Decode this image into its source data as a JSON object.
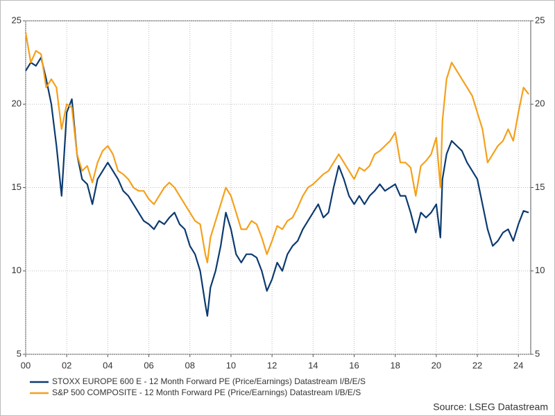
{
  "chart_data": {
    "type": "line",
    "x": [
      2000,
      2000.25,
      2000.5,
      2000.75,
      2001,
      2001.25,
      2001.5,
      2001.75,
      2002,
      2002.25,
      2002.5,
      2002.75,
      2003,
      2003.25,
      2003.5,
      2003.75,
      2004,
      2004.25,
      2004.5,
      2004.75,
      2005,
      2005.25,
      2005.5,
      2005.75,
      2006,
      2006.25,
      2006.5,
      2006.75,
      2007,
      2007.25,
      2007.5,
      2007.75,
      2008,
      2008.25,
      2008.5,
      2008.75,
      2008.85,
      2009,
      2009.25,
      2009.5,
      2009.75,
      2010,
      2010.25,
      2010.5,
      2010.75,
      2011,
      2011.25,
      2011.5,
      2011.75,
      2012,
      2012.25,
      2012.5,
      2012.75,
      2013,
      2013.25,
      2013.5,
      2013.75,
      2014,
      2014.25,
      2014.5,
      2014.75,
      2015,
      2015.25,
      2015.5,
      2015.75,
      2016,
      2016.25,
      2016.5,
      2016.75,
      2017,
      2017.25,
      2017.5,
      2017.75,
      2018,
      2018.25,
      2018.5,
      2018.75,
      2019,
      2019.25,
      2019.5,
      2019.75,
      2020,
      2020.2,
      2020.3,
      2020.5,
      2020.75,
      2021,
      2021.25,
      2021.5,
      2021.75,
      2022,
      2022.25,
      2022.5,
      2022.75,
      2023,
      2023.25,
      2023.5,
      2023.75,
      2024,
      2024.25,
      2024.5
    ],
    "series": [
      {
        "name": "STOXX EUROPE 600 E - 12 Month Forward PE (Price/Earnings) Datastream I/B/E/S",
        "color": "#0b3a70",
        "values": [
          22.0,
          22.5,
          22.3,
          22.8,
          21.5,
          20.0,
          17.5,
          14.5,
          19.5,
          20.3,
          17.0,
          15.5,
          15.2,
          14.0,
          15.5,
          16.0,
          16.5,
          16.0,
          15.5,
          14.8,
          14.5,
          14.0,
          13.5,
          13.0,
          12.8,
          12.5,
          13.0,
          12.8,
          13.2,
          13.5,
          12.8,
          12.5,
          11.5,
          11.0,
          10.0,
          8.0,
          7.3,
          9.0,
          10.0,
          11.5,
          13.5,
          12.5,
          11.0,
          10.5,
          11.0,
          11.0,
          10.8,
          10.0,
          8.8,
          9.5,
          10.5,
          10.0,
          11.0,
          11.5,
          11.8,
          12.5,
          13.0,
          13.5,
          14.0,
          13.2,
          13.5,
          15.0,
          16.3,
          15.5,
          14.5,
          14.0,
          14.5,
          14.0,
          14.5,
          14.8,
          15.2,
          14.8,
          15.0,
          15.2,
          14.5,
          14.5,
          13.5,
          12.3,
          13.5,
          13.2,
          13.5,
          14.0,
          12.0,
          15.5,
          17.0,
          17.8,
          17.5,
          17.2,
          16.5,
          16.0,
          15.5,
          14.0,
          12.5,
          11.5,
          11.8,
          12.3,
          12.5,
          11.8,
          12.8,
          13.6,
          13.5
        ]
      },
      {
        "name": "S&P 500 COMPOSITE - 12 Month Forward PE (Price/Earnings) Datastream I/B/E/S",
        "color": "#f5a01a",
        "values": [
          24.3,
          22.5,
          23.2,
          23.0,
          21.0,
          21.5,
          21.0,
          18.5,
          20.0,
          19.8,
          17.0,
          16.0,
          16.3,
          15.3,
          16.5,
          17.2,
          17.5,
          17.0,
          16.0,
          15.8,
          15.5,
          15.0,
          14.8,
          14.8,
          14.3,
          14.0,
          14.5,
          15.0,
          15.3,
          15.0,
          14.5,
          14.0,
          13.5,
          13.0,
          12.8,
          11.0,
          10.5,
          12.0,
          13.0,
          14.0,
          15.0,
          14.5,
          13.5,
          12.5,
          12.5,
          13.0,
          12.8,
          12.0,
          11.0,
          11.8,
          12.7,
          12.5,
          13.0,
          13.2,
          13.8,
          14.5,
          15.0,
          15.2,
          15.5,
          15.8,
          16.0,
          16.5,
          17.0,
          16.5,
          16.0,
          15.5,
          16.2,
          16.0,
          16.3,
          17.0,
          17.2,
          17.5,
          17.8,
          18.3,
          16.5,
          16.5,
          16.2,
          14.5,
          16.3,
          16.6,
          17.0,
          18.0,
          15.0,
          19.0,
          21.5,
          22.5,
          22.0,
          21.5,
          21.0,
          20.5,
          19.5,
          18.5,
          16.5,
          17.0,
          17.5,
          17.8,
          18.5,
          17.8,
          19.5,
          21.0,
          20.6
        ]
      }
    ],
    "xlim": [
      2000,
      2024.6
    ],
    "xticks": [
      {
        "value": 2000,
        "label": "00"
      },
      {
        "value": 2002,
        "label": "02"
      },
      {
        "value": 2004,
        "label": "04"
      },
      {
        "value": 2006,
        "label": "06"
      },
      {
        "value": 2008,
        "label": "08"
      },
      {
        "value": 2010,
        "label": "10"
      },
      {
        "value": 2012,
        "label": "12"
      },
      {
        "value": 2014,
        "label": "14"
      },
      {
        "value": 2016,
        "label": "16"
      },
      {
        "value": 2018,
        "label": "18"
      },
      {
        "value": 2020,
        "label": "20"
      },
      {
        "value": 2022,
        "label": "22"
      },
      {
        "value": 2024,
        "label": "24"
      }
    ],
    "ylim": [
      5,
      25
    ],
    "yticks": [
      5,
      10,
      15,
      20,
      25
    ],
    "y2lim": [
      5,
      25
    ],
    "y2ticks": [
      5,
      10,
      15,
      20,
      25
    ],
    "grid": true,
    "source": "Source: LSEG Datastream"
  }
}
